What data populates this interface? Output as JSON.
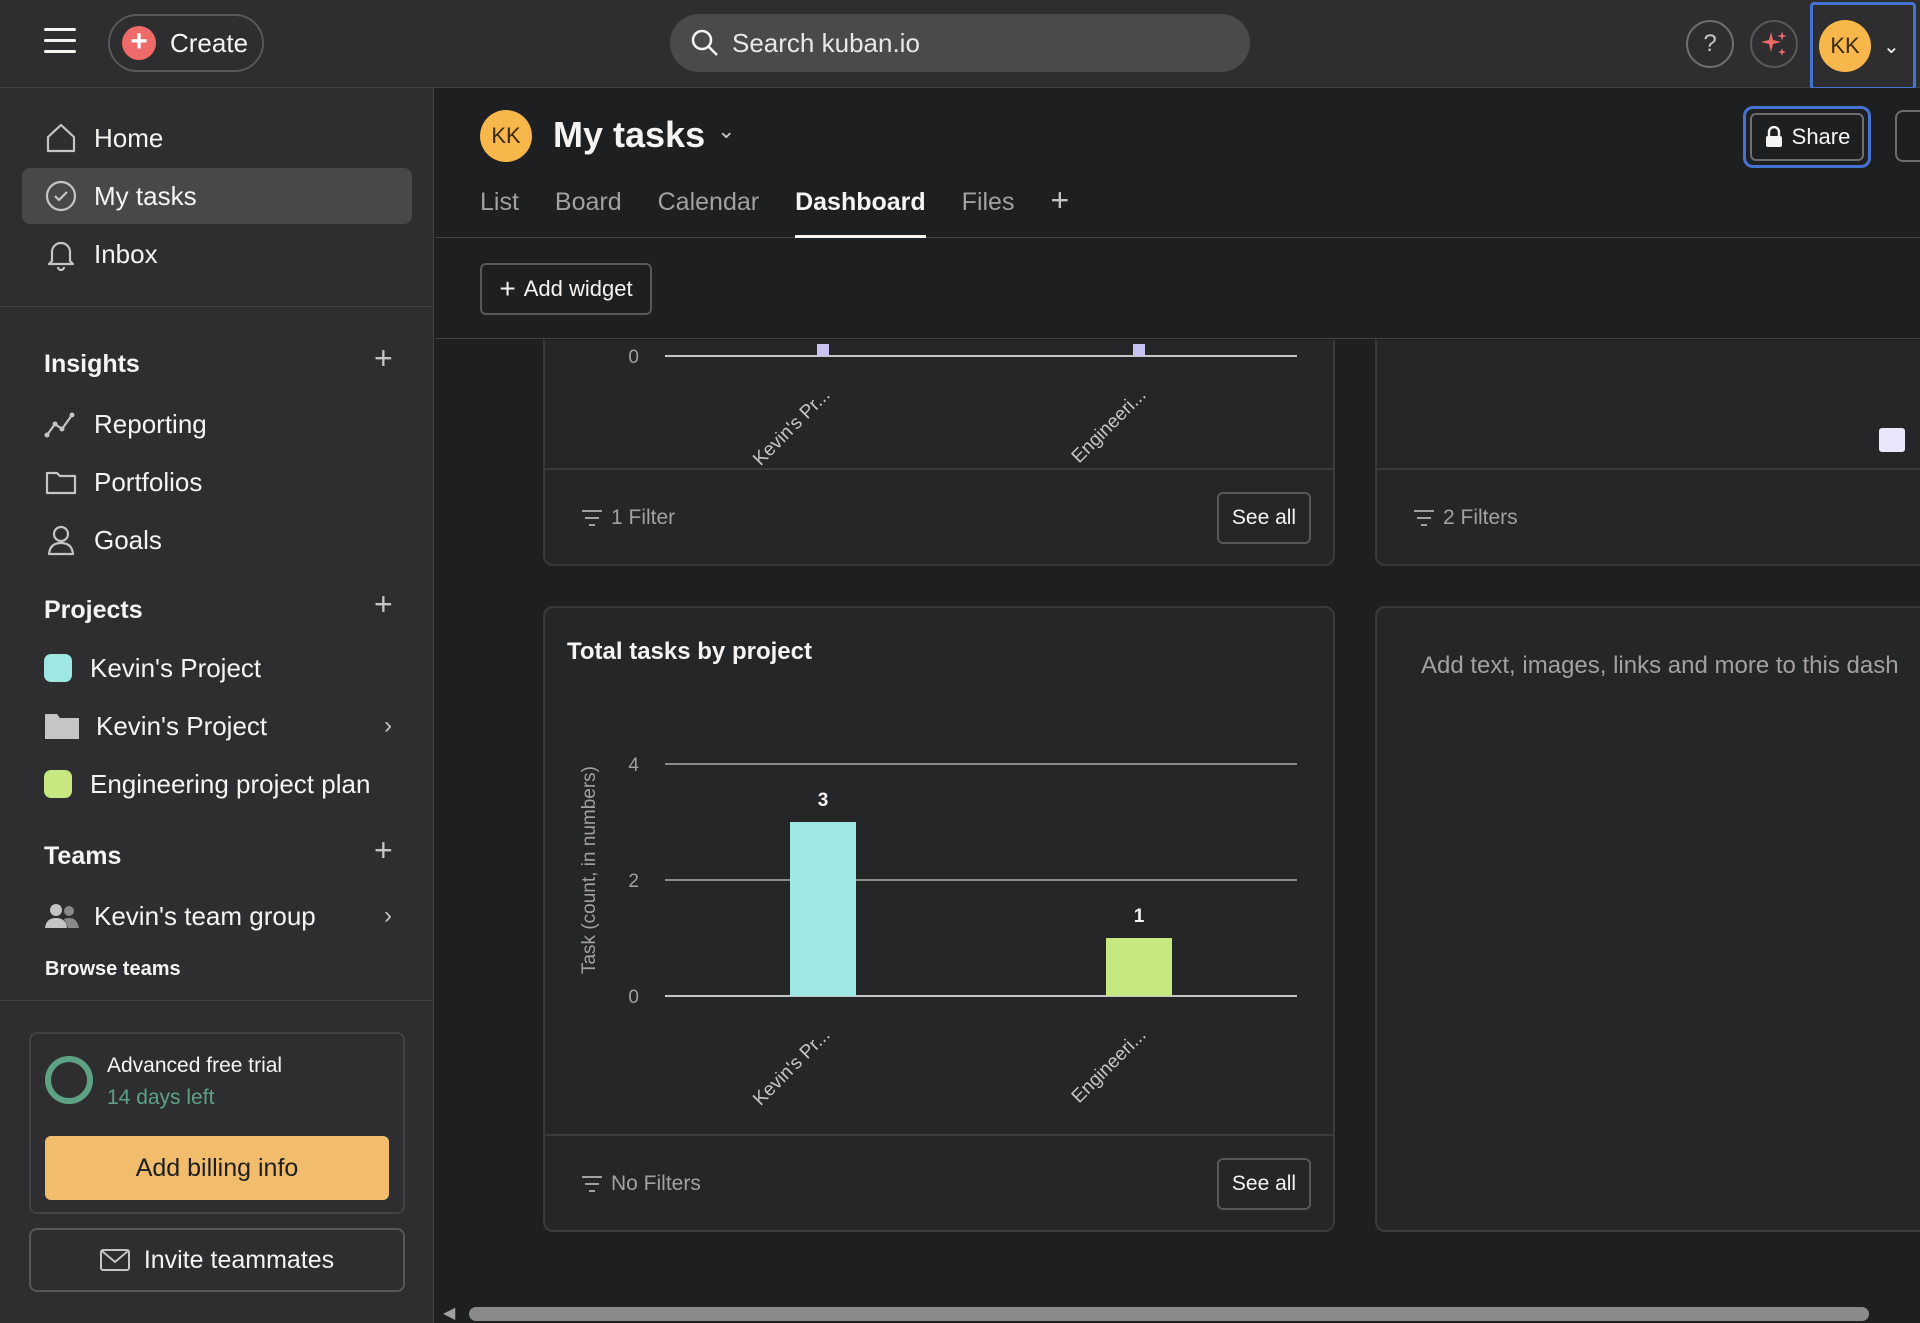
{
  "topbar": {
    "create_label": "Create",
    "search_placeholder": "Search kuban.io",
    "help_label": "?",
    "avatar_initials": "KK"
  },
  "sidebar": {
    "nav": [
      {
        "label": "Home",
        "icon": "home-icon"
      },
      {
        "label": "My tasks",
        "icon": "check-circle-icon",
        "active": true
      },
      {
        "label": "Inbox",
        "icon": "bell-icon"
      }
    ],
    "insights": {
      "title": "Insights",
      "items": [
        {
          "label": "Reporting",
          "icon": "chart-line-icon"
        },
        {
          "label": "Portfolios",
          "icon": "folder-icon"
        },
        {
          "label": "Goals",
          "icon": "person-icon"
        }
      ]
    },
    "projects": {
      "title": "Projects",
      "items": [
        {
          "label": "Kevin's Project",
          "color": "#9ee7e3"
        },
        {
          "label": "Kevin's Project",
          "icon": "folder-filled-icon"
        },
        {
          "label": "Engineering project plan",
          "color": "#c7e881"
        }
      ]
    },
    "teams": {
      "title": "Teams",
      "items": [
        {
          "label": "Kevin's team group",
          "icon": "team-icon"
        }
      ],
      "browse_label": "Browse teams"
    },
    "trial": {
      "title": "Advanced free trial",
      "days_left": "14 days left",
      "billing_label": "Add billing info"
    },
    "invite_label": "Invite teammates"
  },
  "header": {
    "avatar_initials": "KK",
    "title": "My tasks",
    "share_label": "Share",
    "tabs": [
      {
        "label": "List"
      },
      {
        "label": "Board"
      },
      {
        "label": "Calendar"
      },
      {
        "label": "Dashboard",
        "active": true
      },
      {
        "label": "Files"
      }
    ]
  },
  "toolbar": {
    "add_widget_label": "Add widget"
  },
  "widgets": {
    "top_left": {
      "filter_label": "1 Filter",
      "see_all_label": "See all"
    },
    "top_right": {
      "filter_label": "2 Filters"
    },
    "text_widget": {
      "placeholder": "Add text, images, links and more to this dash"
    },
    "total_tasks": {
      "title": "Total tasks by project",
      "filter_label": "No Filters",
      "see_all_label": "See all"
    }
  },
  "chart_data": [
    {
      "type": "bar",
      "title": "",
      "categories": [
        "Kevin's Pr...",
        "Engineeri..."
      ],
      "values": [
        0,
        0
      ],
      "ylim": [
        0,
        4
      ],
      "ytick_visible": [
        "0"
      ],
      "colors": [
        "#c8c4f2",
        "#c8c4f2"
      ]
    },
    {
      "type": "bar",
      "title": "Total tasks by project",
      "categories": [
        "Kevin's Pr...",
        "Engineeri..."
      ],
      "values": [
        3,
        1
      ],
      "data_labels": [
        "3",
        "1"
      ],
      "ylabel": "Task (count, in numbers)",
      "ylim": [
        0,
        4
      ],
      "yticks": [
        "0",
        "2",
        "4"
      ],
      "colors": [
        "#9ee7e3",
        "#c7e881"
      ],
      "grid": true
    }
  ]
}
